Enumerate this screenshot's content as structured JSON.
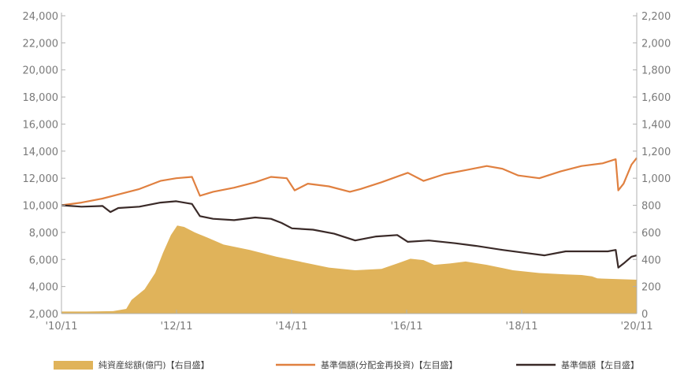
{
  "chart_data": {
    "type": "line",
    "x_ticks": [
      "'10/11",
      "'12/11",
      "'14/11",
      "'16/11",
      "'18/11",
      "'20/11"
    ],
    "y_left": {
      "min": 2000,
      "max": 24000,
      "step": 2000,
      "tick_labels": [
        "2,000",
        "4,000",
        "6,000",
        "8,000",
        "10,000",
        "12,000",
        "14,000",
        "16,000",
        "18,000",
        "20,000",
        "22,000",
        "24,000"
      ]
    },
    "y_right": {
      "min": 0,
      "max": 2200,
      "step": 200,
      "tick_labels": [
        "0",
        "200",
        "400",
        "600",
        "800",
        "1,000",
        "1,200",
        "1,400",
        "1,600",
        "1,800",
        "2,000",
        "2,200"
      ]
    },
    "grid": false,
    "legend_position": "bottom",
    "series": [
      {
        "name": "純資産総額(億円)【右目盛】",
        "kind": "area",
        "axis": "right",
        "color": "#E0B35A",
        "points": [
          [
            2010.92,
            15
          ],
          [
            2011.4,
            15
          ],
          [
            2011.9,
            18
          ],
          [
            2012.15,
            35
          ],
          [
            2012.25,
            100
          ],
          [
            2012.5,
            180
          ],
          [
            2012.7,
            300
          ],
          [
            2012.85,
            450
          ],
          [
            2013.0,
            580
          ],
          [
            2013.12,
            650
          ],
          [
            2013.25,
            640
          ],
          [
            2013.45,
            600
          ],
          [
            2013.7,
            560
          ],
          [
            2014.0,
            510
          ],
          [
            2014.5,
            470
          ],
          [
            2015.0,
            420
          ],
          [
            2015.5,
            380
          ],
          [
            2016.0,
            340
          ],
          [
            2016.5,
            320
          ],
          [
            2017.0,
            330
          ],
          [
            2017.3,
            370
          ],
          [
            2017.55,
            405
          ],
          [
            2017.8,
            395
          ],
          [
            2018.0,
            360
          ],
          [
            2018.3,
            370
          ],
          [
            2018.6,
            385
          ],
          [
            2019.0,
            360
          ],
          [
            2019.5,
            320
          ],
          [
            2020.0,
            300
          ],
          [
            2020.5,
            290
          ],
          [
            2020.8,
            285
          ],
          [
            2021.0,
            275
          ],
          [
            2021.1,
            260
          ],
          [
            2021.5,
            255
          ],
          [
            2021.85,
            250
          ]
        ]
      },
      {
        "name": "基準価額(分配金再投資)【左目盛】",
        "kind": "line",
        "axis": "left",
        "color": "#E08040",
        "points": [
          [
            2010.92,
            10000
          ],
          [
            2011.3,
            10200
          ],
          [
            2011.7,
            10500
          ],
          [
            2012.0,
            10800
          ],
          [
            2012.4,
            11200
          ],
          [
            2012.8,
            11800
          ],
          [
            2013.1,
            12000
          ],
          [
            2013.4,
            12100
          ],
          [
            2013.55,
            10700
          ],
          [
            2013.8,
            11000
          ],
          [
            2014.2,
            11300
          ],
          [
            2014.6,
            11700
          ],
          [
            2014.9,
            12100
          ],
          [
            2015.2,
            12000
          ],
          [
            2015.35,
            11100
          ],
          [
            2015.6,
            11600
          ],
          [
            2016.0,
            11400
          ],
          [
            2016.4,
            11000
          ],
          [
            2016.6,
            11200
          ],
          [
            2017.0,
            11700
          ],
          [
            2017.5,
            12400
          ],
          [
            2017.8,
            11800
          ],
          [
            2018.2,
            12300
          ],
          [
            2018.6,
            12600
          ],
          [
            2019.0,
            12900
          ],
          [
            2019.3,
            12700
          ],
          [
            2019.6,
            12200
          ],
          [
            2020.0,
            12000
          ],
          [
            2020.4,
            12500
          ],
          [
            2020.8,
            12900
          ],
          [
            2021.2,
            13100
          ],
          [
            2021.45,
            13400
          ],
          [
            2021.5,
            11100
          ],
          [
            2021.6,
            11600
          ],
          [
            2021.75,
            13000
          ],
          [
            2021.85,
            13500
          ]
        ]
      },
      {
        "name": "基準価額【左目盛】",
        "kind": "line",
        "axis": "left",
        "color": "#3A2A28",
        "points": [
          [
            2010.92,
            10000
          ],
          [
            2011.3,
            9900
          ],
          [
            2011.7,
            9950
          ],
          [
            2011.85,
            9500
          ],
          [
            2012.0,
            9800
          ],
          [
            2012.4,
            9900
          ],
          [
            2012.8,
            10200
          ],
          [
            2013.1,
            10300
          ],
          [
            2013.4,
            10100
          ],
          [
            2013.55,
            9200
          ],
          [
            2013.8,
            9000
          ],
          [
            2014.2,
            8900
          ],
          [
            2014.6,
            9100
          ],
          [
            2014.9,
            9000
          ],
          [
            2015.1,
            8700
          ],
          [
            2015.3,
            8300
          ],
          [
            2015.7,
            8200
          ],
          [
            2016.1,
            7900
          ],
          [
            2016.5,
            7400
          ],
          [
            2016.9,
            7700
          ],
          [
            2017.3,
            7800
          ],
          [
            2017.5,
            7300
          ],
          [
            2017.9,
            7400
          ],
          [
            2018.4,
            7200
          ],
          [
            2018.8,
            7000
          ],
          [
            2019.3,
            6700
          ],
          [
            2019.7,
            6500
          ],
          [
            2020.1,
            6300
          ],
          [
            2020.5,
            6600
          ],
          [
            2020.9,
            6600
          ],
          [
            2021.3,
            6600
          ],
          [
            2021.45,
            6700
          ],
          [
            2021.5,
            5400
          ],
          [
            2021.6,
            5700
          ],
          [
            2021.75,
            6200
          ],
          [
            2021.85,
            6300
          ]
        ]
      }
    ]
  }
}
